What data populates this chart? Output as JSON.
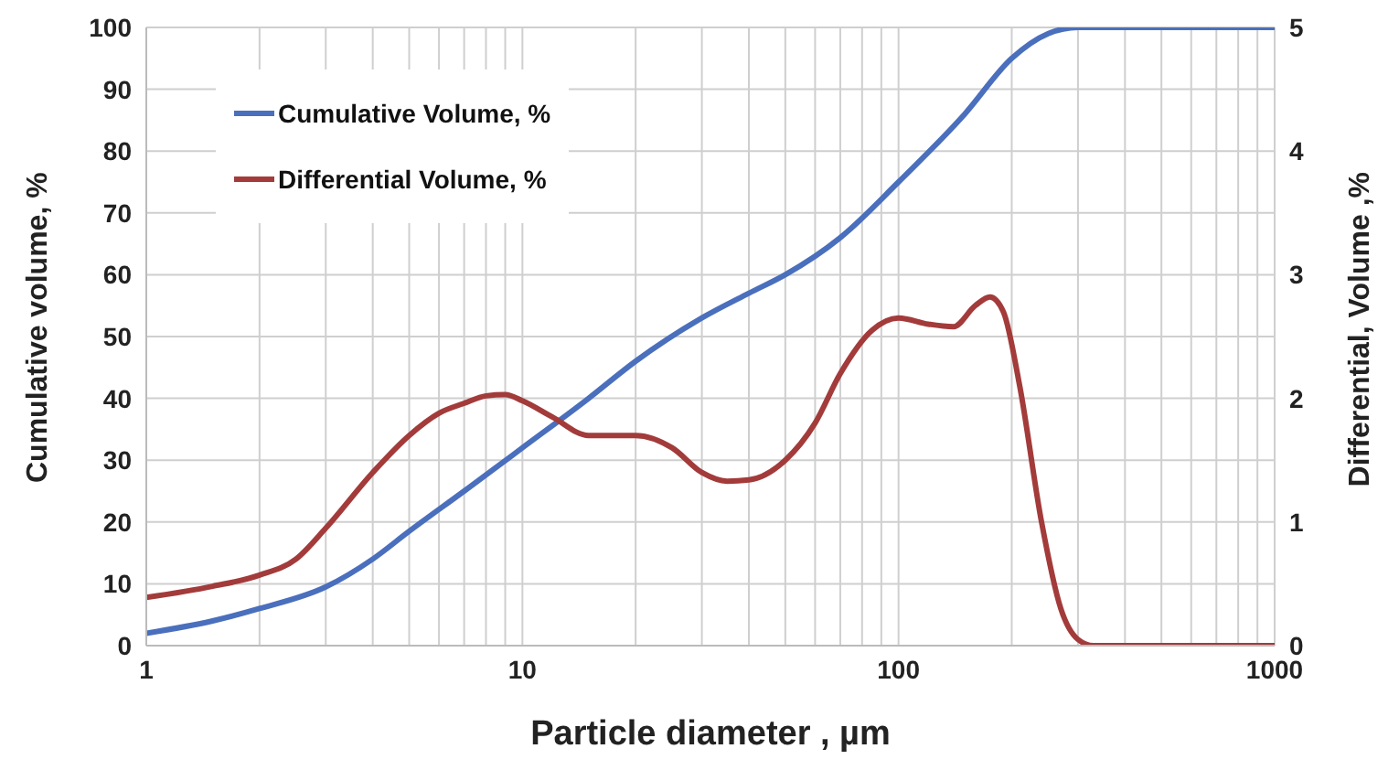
{
  "chart_data": {
    "type": "line",
    "xlabel": "Particle diameter , µm",
    "ylabel": "Cumulative volume, %",
    "y2label": "Differential, Volume ,%",
    "log": "x",
    "xlim": [
      1,
      1000
    ],
    "xticks": [
      1,
      {
        "value": 2,
        "label": null
      },
      {
        "value": 3,
        "label": null
      },
      {
        "value": 4,
        "label": null
      },
      {
        "value": 5,
        "label": null
      },
      {
        "value": 6,
        "label": null
      },
      {
        "value": 7,
        "label": null
      },
      {
        "value": 8,
        "label": null
      },
      {
        "value": 9,
        "label": null
      },
      10,
      {
        "value": 20,
        "label": null
      },
      {
        "value": 30,
        "label": null
      },
      {
        "value": 40,
        "label": null
      },
      {
        "value": 50,
        "label": null
      },
      {
        "value": 60,
        "label": null
      },
      {
        "value": 70,
        "label": null
      },
      {
        "value": 80,
        "label": null
      },
      {
        "value": 90,
        "label": null
      },
      100,
      {
        "value": 200,
        "label": null
      },
      {
        "value": 300,
        "label": null
      },
      {
        "value": 400,
        "label": null
      },
      {
        "value": 500,
        "label": null
      },
      {
        "value": 600,
        "label": null
      },
      {
        "value": 700,
        "label": null
      },
      {
        "value": 800,
        "label": null
      },
      {
        "value": 900,
        "label": null
      },
      1000
    ],
    "ylim": [
      0,
      100
    ],
    "yticks": [
      0,
      10,
      20,
      30,
      40,
      50,
      60,
      70,
      80,
      90,
      100
    ],
    "y2lim": [
      0,
      5
    ],
    "y2ticks": [
      0,
      1,
      2,
      3,
      4,
      5
    ],
    "grid": true,
    "legend": "top left",
    "marker": "none",
    "line_style": "solid",
    "series": [
      {
        "name": "Cumulative Volume,  %",
        "color": "#4a6fbd",
        "x": [
          1,
          1.5,
          2,
          3,
          4,
          5,
          7,
          10,
          15,
          20,
          30,
          40,
          50,
          70,
          100,
          150,
          200,
          250,
          300,
          500,
          1000
        ],
        "values": [
          2,
          4,
          6,
          9.5,
          14,
          18.5,
          25,
          32,
          40,
          46,
          53,
          57,
          60,
          66,
          75,
          86,
          95,
          99,
          100,
          100,
          100
        ]
      },
      {
        "name": "Differential Volume, %",
        "color": "#a33b3b",
        "axis": "y2",
        "x": [
          1,
          1.5,
          2,
          2.5,
          3,
          4,
          5,
          6,
          7,
          8,
          9,
          10,
          12,
          15,
          20,
          25,
          30,
          35,
          40,
          50,
          60,
          70,
          85,
          100,
          120,
          140,
          160,
          175,
          190,
          210,
          240,
          270,
          300,
          330,
          500,
          1000
        ],
        "values": [
          0.39,
          0.48,
          0.57,
          0.7,
          0.95,
          1.4,
          1.7,
          1.88,
          1.96,
          2.02,
          2.03,
          1.98,
          1.85,
          1.7,
          1.7,
          1.6,
          1.4,
          1.33,
          1.34,
          1.5,
          1.8,
          2.2,
          2.55,
          2.65,
          2.6,
          2.58,
          2.75,
          2.82,
          2.7,
          2.1,
          1.0,
          0.3,
          0.05,
          0,
          0,
          0
        ]
      }
    ]
  }
}
